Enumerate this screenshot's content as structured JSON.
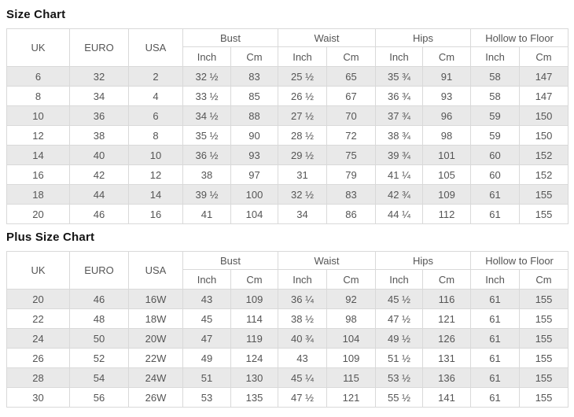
{
  "colors": {
    "border": "#d9d9d9",
    "stripe": "#e9e9e9",
    "text": "#555555",
    "title": "#141414"
  },
  "size_chart": {
    "title": "Size Chart",
    "headers": {
      "uk": "UK",
      "euro": "EURO",
      "usa": "USA",
      "inch": "Inch",
      "cm": "Cm"
    },
    "groups": [
      "Bust",
      "Waist",
      "Hips",
      "Hollow to Floor"
    ],
    "rows": [
      [
        "6",
        "32",
        "2",
        "32 ½",
        "83",
        "25 ½",
        "65",
        "35 ¾",
        "91",
        "58",
        "147"
      ],
      [
        "8",
        "34",
        "4",
        "33 ½",
        "85",
        "26 ½",
        "67",
        "36 ¾",
        "93",
        "58",
        "147"
      ],
      [
        "10",
        "36",
        "6",
        "34 ½",
        "88",
        "27 ½",
        "70",
        "37 ¾",
        "96",
        "59",
        "150"
      ],
      [
        "12",
        "38",
        "8",
        "35 ½",
        "90",
        "28 ½",
        "72",
        "38 ¾",
        "98",
        "59",
        "150"
      ],
      [
        "14",
        "40",
        "10",
        "36 ½",
        "93",
        "29 ½",
        "75",
        "39 ¾",
        "101",
        "60",
        "152"
      ],
      [
        "16",
        "42",
        "12",
        "38",
        "97",
        "31",
        "79",
        "41 ¼",
        "105",
        "60",
        "152"
      ],
      [
        "18",
        "44",
        "14",
        "39 ½",
        "100",
        "32 ½",
        "83",
        "42 ¾",
        "109",
        "61",
        "155"
      ],
      [
        "20",
        "46",
        "16",
        "41",
        "104",
        "34",
        "86",
        "44 ¼",
        "112",
        "61",
        "155"
      ]
    ]
  },
  "plus_size_chart": {
    "title": "Plus Size Chart",
    "headers": {
      "uk": "UK",
      "euro": "EURO",
      "usa": "USA",
      "inch": "Inch",
      "cm": "Cm"
    },
    "groups": [
      "Bust",
      "Waist",
      "Hips",
      "Hollow to Floor"
    ],
    "rows": [
      [
        "20",
        "46",
        "16W",
        "43",
        "109",
        "36 ¼",
        "92",
        "45 ½",
        "116",
        "61",
        "155"
      ],
      [
        "22",
        "48",
        "18W",
        "45",
        "114",
        "38 ½",
        "98",
        "47 ½",
        "121",
        "61",
        "155"
      ],
      [
        "24",
        "50",
        "20W",
        "47",
        "119",
        "40 ¾",
        "104",
        "49 ½",
        "126",
        "61",
        "155"
      ],
      [
        "26",
        "52",
        "22W",
        "49",
        "124",
        "43",
        "109",
        "51 ½",
        "131",
        "61",
        "155"
      ],
      [
        "28",
        "54",
        "24W",
        "51",
        "130",
        "45 ¼",
        "115",
        "53 ½",
        "136",
        "61",
        "155"
      ],
      [
        "30",
        "56",
        "26W",
        "53",
        "135",
        "47 ½",
        "121",
        "55 ½",
        "141",
        "61",
        "155"
      ]
    ]
  }
}
